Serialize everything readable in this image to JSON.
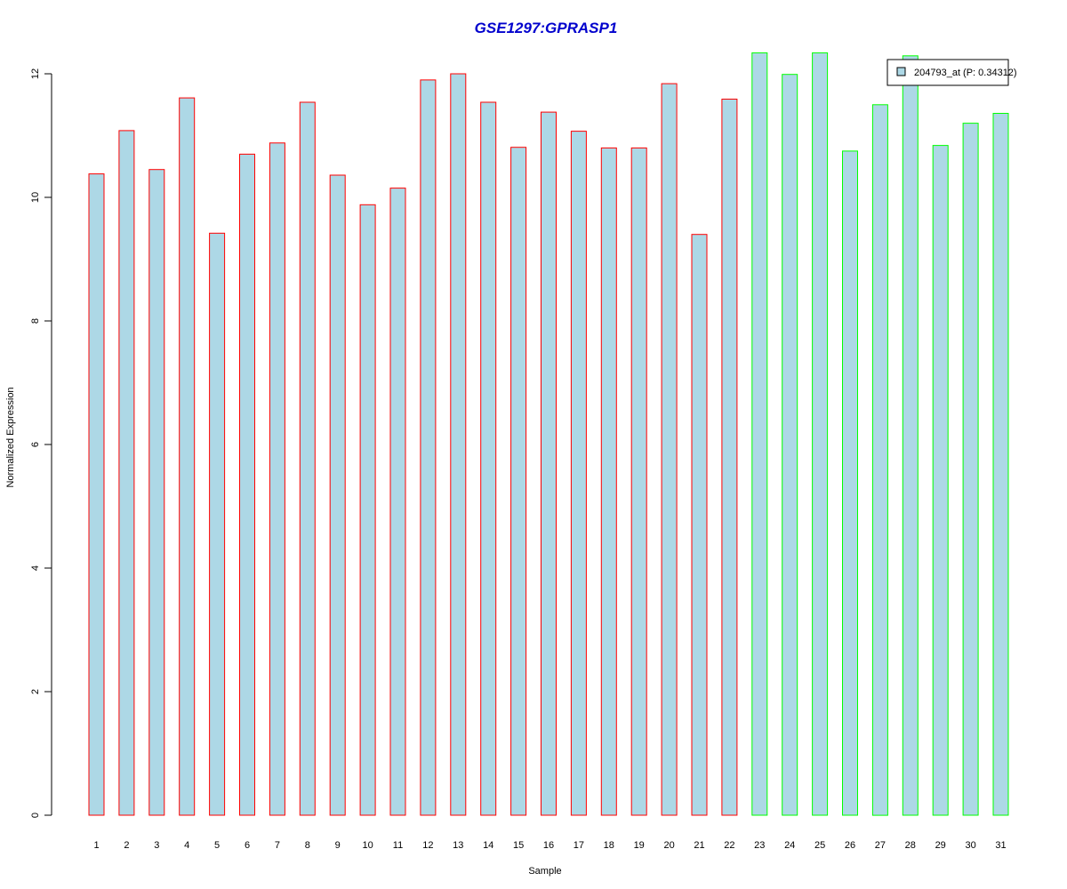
{
  "chart_data": {
    "type": "bar",
    "title": "GSE1297:GPRASP1",
    "xlabel": "Sample",
    "ylabel": "Normalized Expression",
    "ylim": [
      0,
      12.4
    ],
    "yticks": [
      0,
      2,
      4,
      6,
      8,
      10,
      12
    ],
    "grid": false,
    "categories": [
      "1",
      "2",
      "3",
      "4",
      "5",
      "6",
      "7",
      "8",
      "9",
      "10",
      "11",
      "12",
      "13",
      "14",
      "15",
      "16",
      "17",
      "18",
      "19",
      "20",
      "21",
      "22",
      "23",
      "24",
      "25",
      "26",
      "27",
      "28",
      "29",
      "30",
      "31"
    ],
    "series": [
      {
        "name": "204793_at (P: 0.34312)",
        "values": [
          10.38,
          11.08,
          10.45,
          11.61,
          9.42,
          10.7,
          10.88,
          11.54,
          10.36,
          9.88,
          10.15,
          11.9,
          12.0,
          11.54,
          10.81,
          11.38,
          11.07,
          10.8,
          10.8,
          11.84,
          9.4,
          11.59,
          12.34,
          11.99,
          12.34,
          10.75,
          11.5,
          12.29,
          10.84,
          11.2,
          11.36
        ]
      }
    ],
    "groups": [
      1,
      1,
      1,
      1,
      1,
      1,
      1,
      1,
      1,
      1,
      1,
      1,
      1,
      1,
      1,
      1,
      1,
      1,
      1,
      1,
      1,
      1,
      2,
      2,
      2,
      2,
      2,
      2,
      2,
      2,
      2
    ],
    "legend_position": "top-right",
    "colors": {
      "fill": "#add8e6",
      "group1_border": "#ff0000",
      "group2_border": "#00ff00",
      "title": "#0000cd"
    }
  }
}
